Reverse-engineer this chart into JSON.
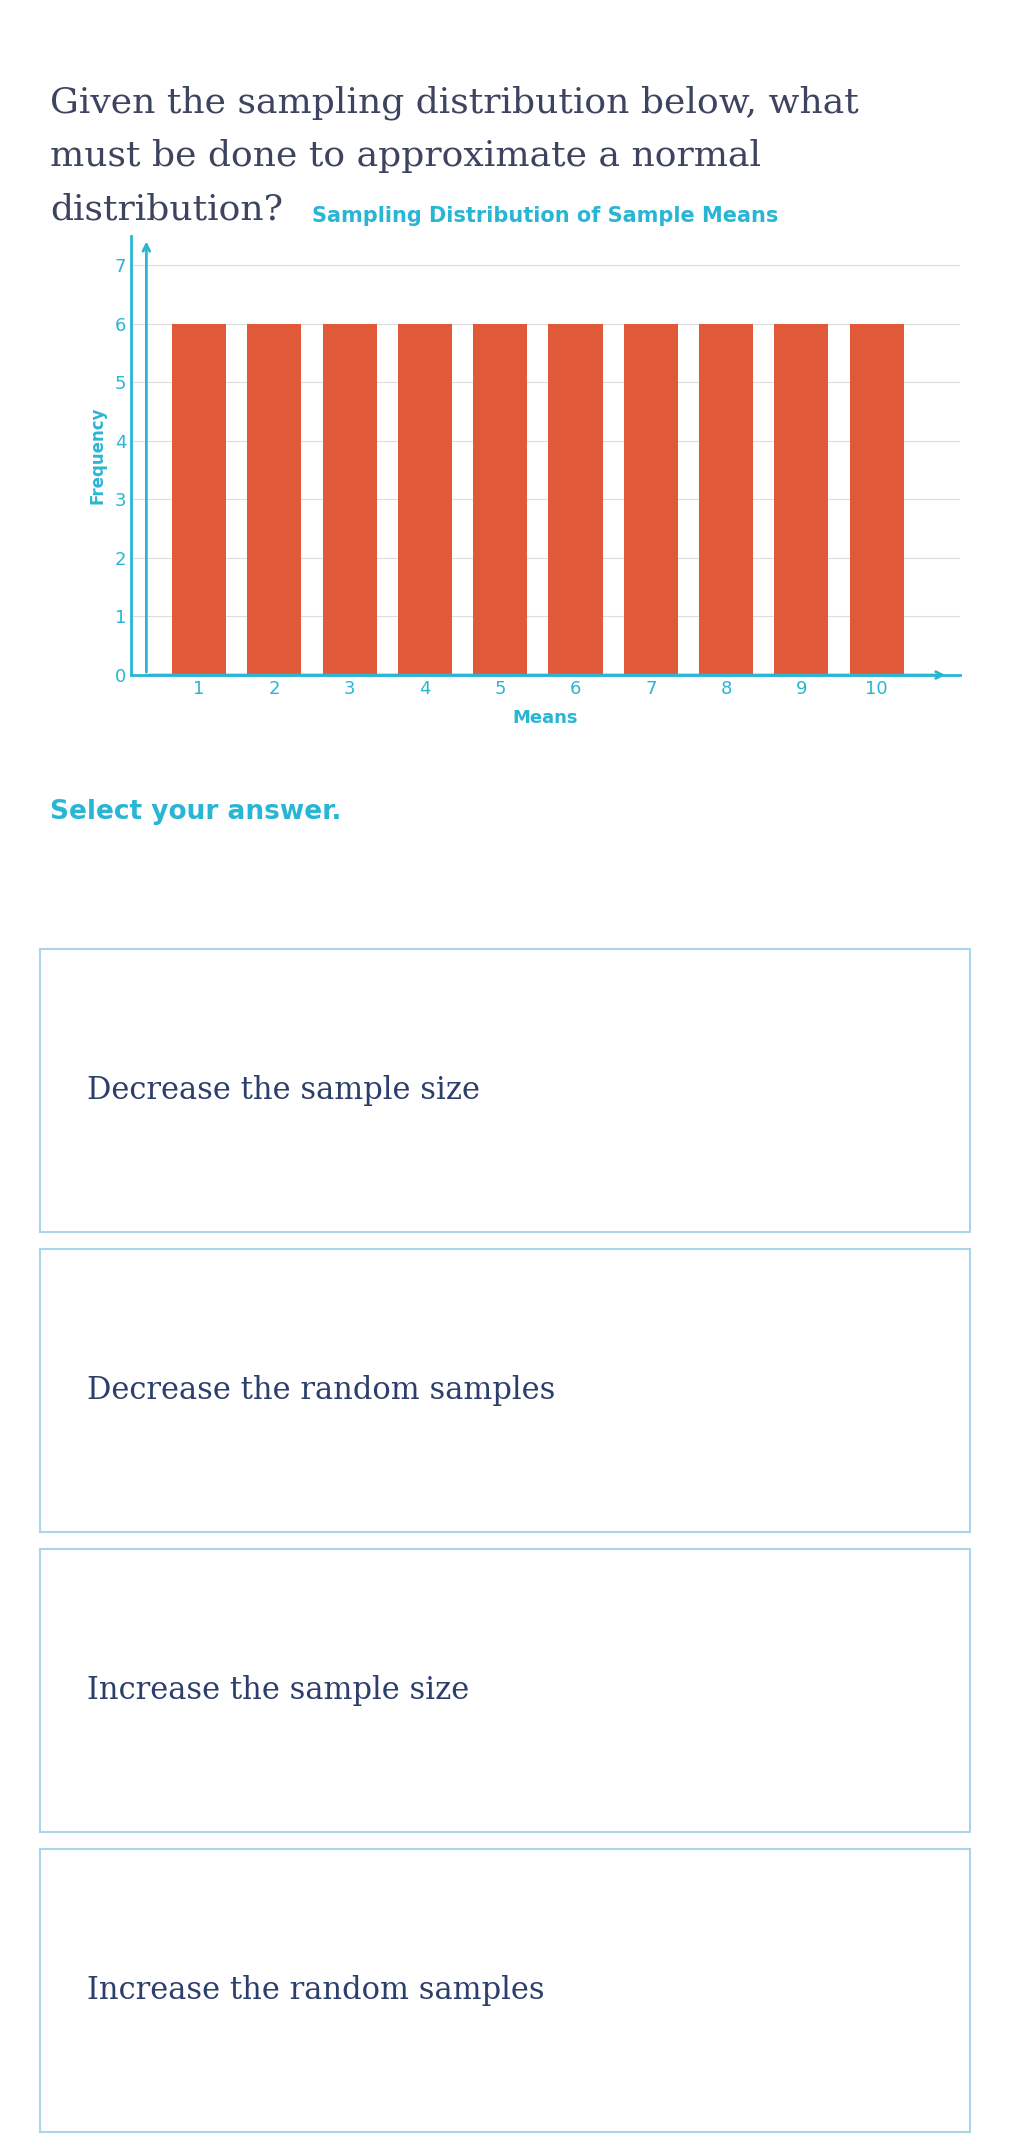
{
  "question_text": "Given the sampling distribution below, what\nmust be done to approximate a normal\ndistribution?",
  "question_fontsize": 26,
  "question_color": "#3d4460",
  "chart_title": "Sampling Distribution of Sample Means",
  "chart_title_color": "#29b6d4",
  "chart_title_fontsize": 15,
  "xlabel": "Means",
  "ylabel": "Frequency",
  "xlabel_color": "#29b6d4",
  "ylabel_color": "#29b6d4",
  "xlabel_fontsize": 13,
  "ylabel_fontsize": 12,
  "bar_values": [
    6,
    6,
    6,
    6,
    6,
    6,
    6,
    6,
    6,
    6
  ],
  "bar_color": "#e05a3a",
  "x_ticks": [
    1,
    2,
    3,
    4,
    5,
    6,
    7,
    8,
    9,
    10
  ],
  "y_ticks": [
    0,
    1,
    2,
    3,
    4,
    5,
    6,
    7
  ],
  "ylim": [
    0,
    7.5
  ],
  "xlim": [
    0.3,
    10.8
  ],
  "axis_color": "#29b6d4",
  "grid_color": "#dddddd",
  "background_color": "#ffffff",
  "select_label": "Select your answer.",
  "select_color": "#29b6d4",
  "select_fontsize": 19,
  "options": [
    "Decrease the sample size",
    "Decrease the random samples",
    "Increase the sample size",
    "Increase the random samples"
  ],
  "option_fontsize": 22,
  "option_text_color": "#2c3e6b",
  "option_box_border_color": "#aad4e8",
  "option_box_bg": "#ffffff",
  "tick_fontsize": 13
}
